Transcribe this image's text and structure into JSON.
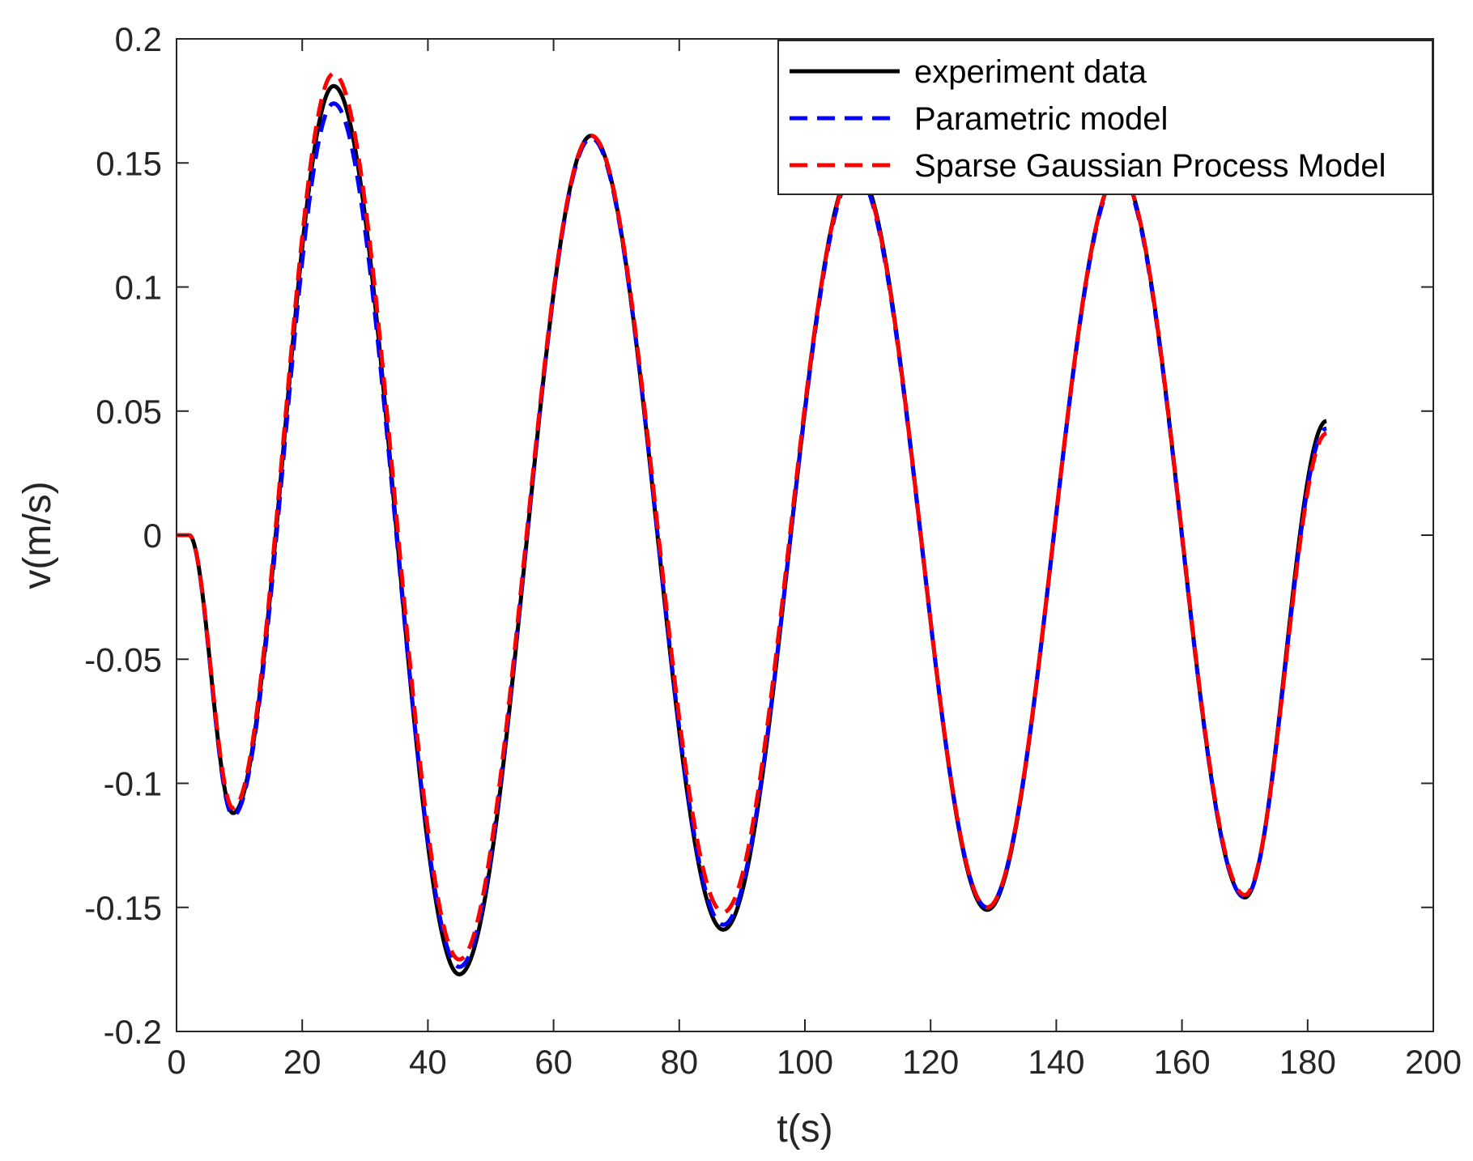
{
  "chart_data": {
    "type": "line",
    "xlabel": "t(s)",
    "ylabel": "v(m/s)",
    "xlim": [
      0,
      200
    ],
    "ylim": [
      -0.2,
      0.2
    ],
    "xticks": [
      0,
      20,
      40,
      60,
      80,
      100,
      120,
      140,
      160,
      180,
      200
    ],
    "xtick_labels": [
      "0",
      "20",
      "40",
      "60",
      "80",
      "100",
      "120",
      "140",
      "160",
      "180",
      "200"
    ],
    "yticks": [
      0.2,
      0.15,
      0.1,
      0.05,
      0,
      -0.05,
      -0.1,
      -0.15,
      -0.2
    ],
    "ytick_labels": [
      "0.2",
      "0.15",
      "0.1",
      "0.05",
      "0",
      "-0.05",
      "-0.1",
      "-0.15",
      "-0.2"
    ],
    "grid": false,
    "legend_position": "top-right",
    "x": [
      0,
      2,
      9,
      25,
      45,
      66,
      87,
      108,
      129,
      150,
      170,
      183
    ],
    "series": [
      {
        "name": "experiment data",
        "color": "#000000",
        "style": "solid",
        "values": [
          0,
          0,
          -0.112,
          0.181,
          -0.177,
          0.161,
          -0.159,
          0.148,
          -0.151,
          0.146,
          -0.146,
          0.046
        ]
      },
      {
        "name": "Parametric model",
        "color": "#0000ff",
        "style": "dashed",
        "values": [
          0,
          0,
          -0.113,
          0.174,
          -0.174,
          0.16,
          -0.157,
          0.146,
          -0.15,
          0.145,
          -0.146,
          0.043
        ]
      },
      {
        "name": "Sparse Gaussian Process Model",
        "color": "#ff0000",
        "style": "dashed",
        "values": [
          0,
          0,
          -0.11,
          0.186,
          -0.171,
          0.161,
          -0.152,
          0.147,
          -0.15,
          0.146,
          -0.145,
          0.041
        ]
      }
    ]
  }
}
